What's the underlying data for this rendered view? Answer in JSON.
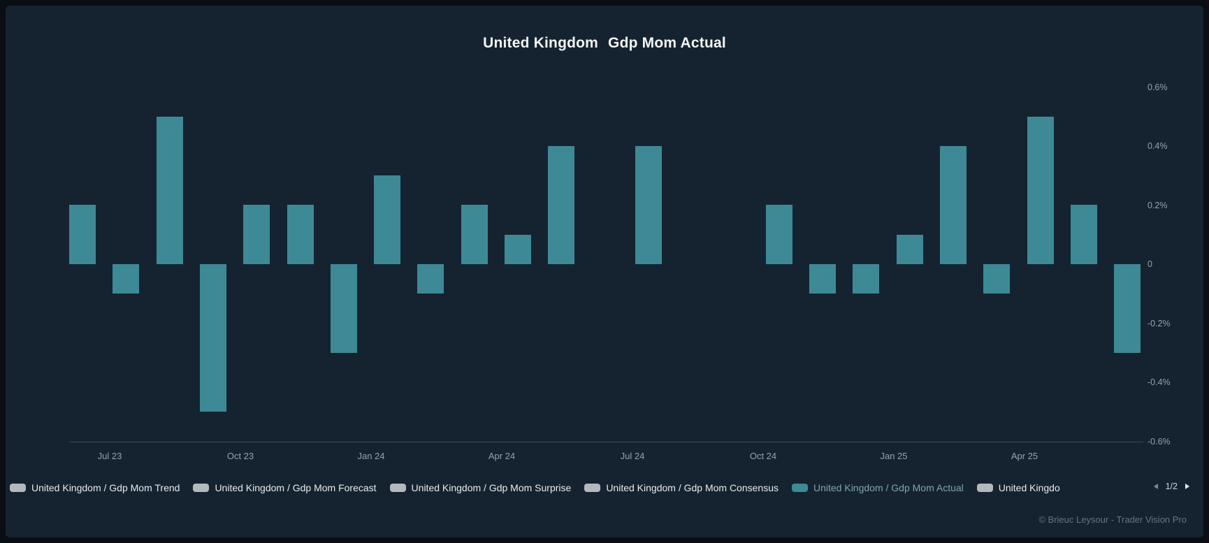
{
  "title": {
    "country": "United Kingdom",
    "metric": "Gdp Mom Actual"
  },
  "chart_data": {
    "type": "bar",
    "title": "United Kingdom Gdp Mom Actual",
    "xlabel": "",
    "ylabel": "",
    "ylim": [
      -0.6,
      0.6
    ],
    "grid": false,
    "legend_position": "bottom",
    "series": [
      {
        "name": "United Kingdom / Gdp Mom Actual",
        "color": "#3d8a96",
        "x": [
          "Jun 23",
          "Jul 23",
          "Aug 23",
          "Sep 23",
          "Oct 23",
          "Nov 23",
          "Dec 23",
          "Jan 24",
          "Feb 24",
          "Mar 24",
          "Apr 24",
          "May 24",
          "Jun 24",
          "Jul 24",
          "Aug 24",
          "Sep 24",
          "Oct 24",
          "Nov 24",
          "Dec 24",
          "Jan 25",
          "Feb 25",
          "Mar 25",
          "Apr 25",
          "May 25",
          "Jun 25"
        ],
        "values": [
          0.2,
          -0.1,
          0.5,
          -0.5,
          0.2,
          0.2,
          -0.3,
          0.3,
          -0.1,
          0.2,
          0.1,
          0.4,
          0,
          0.4,
          0,
          0,
          0.2,
          -0.1,
          -0.1,
          0.1,
          0.4,
          -0.1,
          0.5,
          0.2,
          -0.3
        ]
      }
    ],
    "yticks": [
      {
        "label": "0.6%",
        "value": 0.6
      },
      {
        "label": "0.4%",
        "value": 0.4
      },
      {
        "label": "0.2%",
        "value": 0.2
      },
      {
        "label": "0",
        "value": 0
      },
      {
        "label": "-0.2%",
        "value": -0.2
      },
      {
        "label": "-0.4%",
        "value": -0.4
      },
      {
        "label": "-0.6%",
        "value": -0.6
      }
    ],
    "xticks": [
      {
        "label": "Jul 23",
        "slot": 1
      },
      {
        "label": "Oct 23",
        "slot": 4
      },
      {
        "label": "Jan 24",
        "slot": 7
      },
      {
        "label": "Apr 24",
        "slot": 10
      },
      {
        "label": "Jul 24",
        "slot": 13
      },
      {
        "label": "Oct 24",
        "slot": 16
      },
      {
        "label": "Jan 25",
        "slot": 19
      },
      {
        "label": "Apr 25",
        "slot": 22
      }
    ]
  },
  "legend": {
    "text_color": "#e7eaec",
    "active_text_color": "#7fa6ad",
    "items": [
      {
        "label": "United Kingdom / Gdp Mom Trend",
        "swatch_color": "#b4b9bd",
        "active": false
      },
      {
        "label": "United Kingdom / Gdp Mom Forecast",
        "swatch_color": "#b4b9bd",
        "active": false
      },
      {
        "label": "United Kingdom / Gdp Mom Surprise",
        "swatch_color": "#b4b9bd",
        "active": false
      },
      {
        "label": "United Kingdom / Gdp Mom Consensus",
        "swatch_color": "#b4b9bd",
        "active": false
      },
      {
        "label": "United Kingdom / Gdp Mom Actual",
        "swatch_color": "#3d8a96",
        "active": true
      },
      {
        "label": "United Kingdo",
        "swatch_color": "#b4b9bd",
        "active": false
      }
    ],
    "pager": {
      "label": "1/2"
    }
  },
  "footer": {
    "credit": "© Brieuc Leysour - Trader Vision Pro"
  },
  "colors": {
    "frame": "#0a0e14",
    "panel": "#152331",
    "bar": "#3d8a96",
    "axis_line": "#3e4a54",
    "tick_text": "#96a1a9"
  }
}
